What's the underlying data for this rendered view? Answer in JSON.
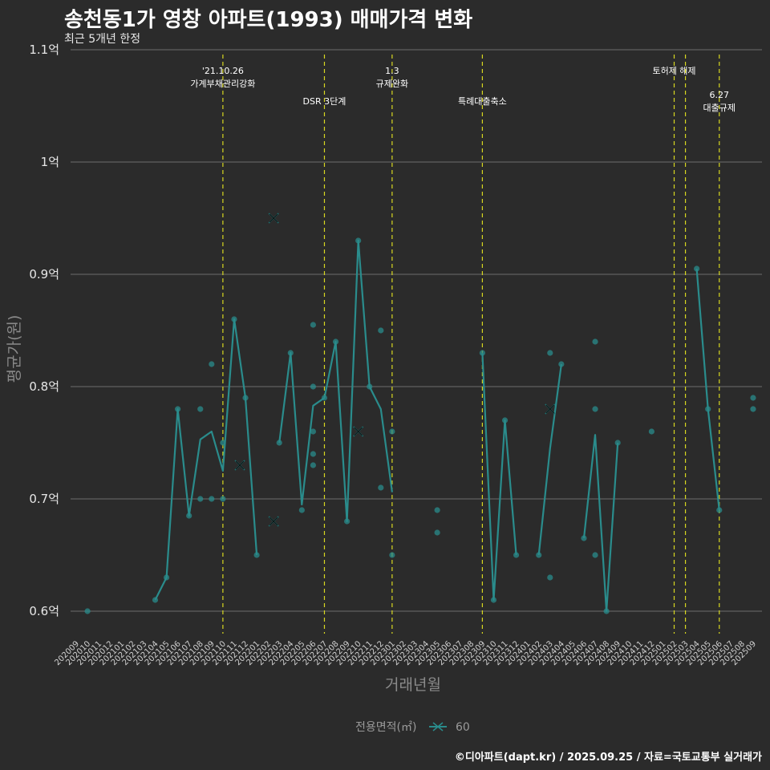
{
  "chart_data": {
    "type": "line",
    "title": "송천동1가 영창 아파트(1993) 매매가격 변화",
    "subtitle": "최근 5개년 한정",
    "xlabel": "거래년월",
    "ylabel": "평균가(원)",
    "caption": "©디아파트(dapt.kr) / 2025.09.25 / 자료=국토교통부 실거래가",
    "legend_title": "전용면적(㎡)",
    "legend_position": "bottom",
    "ylim": [
      0.58,
      1.1
    ],
    "y_ticks": [
      {
        "value": 0.6,
        "label": "0.6억"
      },
      {
        "value": 0.7,
        "label": "0.7억"
      },
      {
        "value": 0.8,
        "label": "0.8억"
      },
      {
        "value": 0.9,
        "label": "0.9억"
      },
      {
        "value": 1.0,
        "label": "1억"
      },
      {
        "value": 1.1,
        "label": "1.1억"
      }
    ],
    "categories": [
      "202009",
      "202010",
      "202011",
      "202012",
      "202101",
      "202102",
      "202103",
      "202104",
      "202105",
      "202106",
      "202107",
      "202108",
      "202109",
      "202110",
      "202111",
      "202112",
      "202201",
      "202202",
      "202203",
      "202204",
      "202205",
      "202206",
      "202207",
      "202208",
      "202209",
      "202210",
      "202211",
      "202212",
      "202301",
      "202302",
      "202303",
      "202304",
      "202305",
      "202306",
      "202307",
      "202308",
      "202309",
      "202310",
      "202311",
      "202312",
      "202401",
      "202402",
      "202403",
      "202404",
      "202405",
      "202406",
      "202407",
      "202408",
      "202409",
      "202410",
      "202411",
      "202412",
      "202501",
      "202502",
      "202503",
      "202504",
      "202505",
      "202506",
      "202507",
      "202508",
      "202509"
    ],
    "events": [
      {
        "x": 13,
        "label": "'21.10.26\n가계부채관리강화",
        "level": 0
      },
      {
        "x": 22,
        "label": "DSR 3단계",
        "level": 1
      },
      {
        "x": 28,
        "label": "1.3\n규제완화",
        "level": 0
      },
      {
        "x": 36,
        "label": "특례대출축소",
        "level": 1
      },
      {
        "x": 53,
        "label": "토허제 해제",
        "level": 0
      },
      {
        "x": 54,
        "label": "",
        "level": 0
      },
      {
        "x": 57,
        "label": "6.27\n대출규제",
        "level": 2
      }
    ],
    "series": [
      {
        "name": "60",
        "color": "#2a8c8c",
        "line_segments": [
          [
            [
              7,
              0.61
            ],
            [
              8,
              0.63
            ],
            [
              9,
              0.78
            ],
            [
              10,
              0.685
            ],
            [
              11,
              0.753
            ],
            [
              12,
              0.76
            ],
            [
              13,
              0.725
            ],
            [
              14,
              0.86
            ],
            [
              15,
              0.79
            ],
            [
              16,
              0.65
            ]
          ],
          [
            [
              18,
              0.75
            ],
            [
              19,
              0.83
            ],
            [
              20,
              0.695
            ],
            [
              21,
              0.783
            ],
            [
              22,
              0.79
            ],
            [
              23,
              0.84
            ],
            [
              24,
              0.68
            ],
            [
              25,
              0.93
            ],
            [
              26,
              0.8
            ],
            [
              27,
              0.78
            ],
            [
              28,
              0.706
            ]
          ],
          [
            [
              36,
              0.83
            ],
            [
              37,
              0.61
            ],
            [
              38,
              0.77
            ],
            [
              39,
              0.65
            ]
          ],
          [
            [
              41,
              0.65
            ],
            [
              42,
              0.745
            ],
            [
              43,
              0.82
            ]
          ],
          [
            [
              45,
              0.665
            ],
            [
              46,
              0.757
            ],
            [
              47,
              0.6
            ],
            [
              48,
              0.75
            ]
          ],
          [
            [
              55,
              0.905
            ],
            [
              56,
              0.78
            ],
            [
              57,
              0.69
            ]
          ]
        ],
        "points": [
          [
            1,
            0.6
          ],
          [
            7,
            0.61
          ],
          [
            8,
            0.63
          ],
          [
            9,
            0.78
          ],
          [
            10,
            0.685
          ],
          [
            11,
            0.78
          ],
          [
            11,
            0.7
          ],
          [
            12,
            0.82
          ],
          [
            12,
            0.7
          ],
          [
            13,
            0.75
          ],
          [
            13,
            0.7
          ],
          [
            14,
            0.86
          ],
          [
            15,
            0.79
          ],
          [
            16,
            0.65
          ],
          [
            18,
            0.75
          ],
          [
            19,
            0.83
          ],
          [
            20,
            0.69
          ],
          [
            21,
            0.855
          ],
          [
            21,
            0.8
          ],
          [
            21,
            0.76
          ],
          [
            21,
            0.74
          ],
          [
            21,
            0.73
          ],
          [
            22,
            0.79
          ],
          [
            23,
            0.84
          ],
          [
            24,
            0.68
          ],
          [
            25,
            0.93
          ],
          [
            26,
            0.8
          ],
          [
            27,
            0.85
          ],
          [
            27,
            0.71
          ],
          [
            28,
            0.76
          ],
          [
            28,
            0.65
          ],
          [
            32,
            0.69
          ],
          [
            32,
            0.67
          ],
          [
            36,
            0.83
          ],
          [
            37,
            0.61
          ],
          [
            38,
            0.77
          ],
          [
            39,
            0.65
          ],
          [
            41,
            0.65
          ],
          [
            42,
            0.83
          ],
          [
            42,
            0.63
          ],
          [
            43,
            0.82
          ],
          [
            45,
            0.665
          ],
          [
            46,
            0.84
          ],
          [
            46,
            0.78
          ],
          [
            46,
            0.65
          ],
          [
            47,
            0.6
          ],
          [
            48,
            0.75
          ],
          [
            51,
            0.76
          ],
          [
            55,
            0.905
          ],
          [
            56,
            0.78
          ],
          [
            57,
            0.69
          ],
          [
            60,
            0.79
          ],
          [
            60,
            0.78
          ]
        ],
        "cross_markers": [
          [
            14.5,
            0.73
          ],
          [
            17.5,
            0.95
          ],
          [
            17.5,
            0.68
          ],
          [
            25,
            0.76
          ],
          [
            42,
            0.78
          ]
        ]
      }
    ]
  }
}
